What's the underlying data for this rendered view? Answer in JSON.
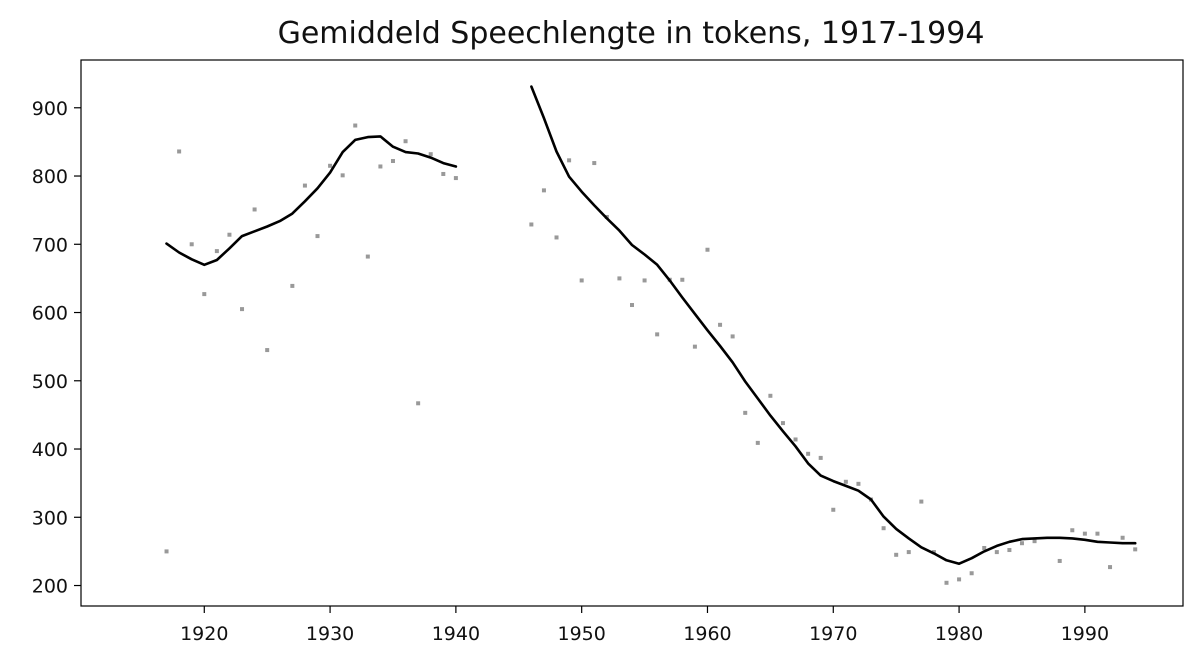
{
  "chart_data": {
    "type": "line",
    "title": "Gemiddeld Speechlengte in tokens, 1917-1994",
    "xlabel": "",
    "ylabel": "",
    "xlim": [
      1910.2,
      1997.8
    ],
    "ylim": [
      170,
      970
    ],
    "x_ticks": [
      1920,
      1930,
      1940,
      1950,
      1960,
      1970,
      1980,
      1990
    ],
    "y_ticks": [
      200,
      300,
      400,
      500,
      600,
      700,
      800,
      900
    ],
    "grid": false,
    "legend": "none",
    "colors": {
      "line": "#000000",
      "points": "#999999",
      "axes": "#000000"
    },
    "series": [
      {
        "kind": "points",
        "x": [
          1917,
          1918,
          1919,
          1920,
          1921,
          1922,
          1923,
          1924,
          1925,
          1927,
          1928,
          1929,
          1930,
          1931,
          1932,
          1933,
          1934,
          1935,
          1936,
          1937,
          1938,
          1939,
          1940,
          1946,
          1947,
          1948,
          1949,
          1950,
          1951,
          1952,
          1953,
          1954,
          1955,
          1956,
          1957,
          1958,
          1959,
          1960,
          1961,
          1962,
          1963,
          1964,
          1965,
          1966,
          1967,
          1968,
          1969,
          1970,
          1971,
          1972,
          1973,
          1974,
          1975,
          1976,
          1977,
          1978,
          1979,
          1980,
          1981,
          1982,
          1983,
          1984,
          1985,
          1986,
          1988,
          1989,
          1990,
          1991,
          1992,
          1993,
          1994
        ],
        "y": [
          250,
          836,
          700,
          627,
          690,
          714,
          605,
          751,
          545,
          639,
          786,
          712,
          815,
          801,
          874,
          682,
          814,
          822,
          851,
          467,
          832,
          803,
          797,
          729,
          779,
          710,
          823,
          647,
          819,
          740,
          650,
          611,
          647,
          568,
          648,
          648,
          550,
          692,
          582,
          565,
          453,
          409,
          478,
          438,
          414,
          393,
          387,
          311,
          352,
          349,
          326,
          284,
          245,
          249,
          323,
          249,
          204,
          209,
          218,
          255,
          249,
          252,
          262,
          265,
          236,
          281,
          276,
          276,
          227,
          270,
          253
        ]
      },
      {
        "kind": "smooth-line",
        "x": [
          1917,
          1918,
          1919,
          1920,
          1921,
          1922,
          1923,
          1924,
          1925,
          1926,
          1927,
          1928,
          1929,
          1930,
          1931,
          1932,
          1933,
          1934,
          1935,
          1936,
          1937,
          1938,
          1939,
          1940
        ],
        "y": [
          701,
          688,
          678,
          670,
          677,
          694,
          712,
          719,
          726,
          734,
          745,
          763,
          782,
          805,
          835,
          853,
          857,
          858,
          843,
          835,
          833,
          827,
          819,
          814
        ]
      },
      {
        "kind": "smooth-line",
        "x": [
          1946,
          1947,
          1948,
          1949,
          1950,
          1951,
          1952,
          1953,
          1954,
          1955,
          1956,
          1957,
          1958,
          1959,
          1960,
          1961,
          1962,
          1963,
          1964,
          1965,
          1966,
          1967,
          1968,
          1969,
          1970,
          1971,
          1972,
          1973,
          1974,
          1975,
          1976,
          1977,
          1978,
          1979,
          1980,
          1981,
          1982,
          1983,
          1984,
          1985,
          1986,
          1987,
          1988,
          1989,
          1990,
          1991,
          1992,
          1993,
          1994
        ],
        "y": [
          931,
          885,
          836,
          799,
          777,
          757,
          738,
          720,
          699,
          685,
          670,
          647,
          622,
          598,
          574,
          551,
          527,
          499,
          474,
          449,
          426,
          404,
          379,
          361,
          353,
          346,
          339,
          326,
          301,
          283,
          269,
          256,
          247,
          237,
          232,
          240,
          250,
          258,
          264,
          268,
          269,
          270,
          270,
          269,
          267,
          264,
          263,
          262,
          262
        ]
      }
    ]
  }
}
